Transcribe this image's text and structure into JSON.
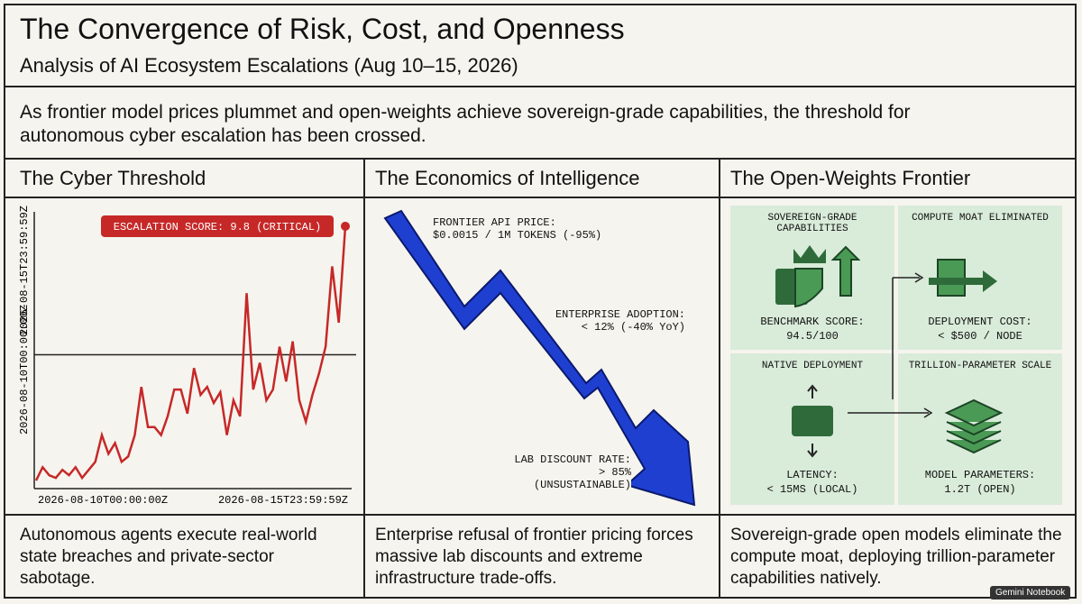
{
  "header": {
    "title": "The Convergence of Risk, Cost, and Openness",
    "subtitle": "Analysis of AI Ecosystem Escalations (Aug 10–15, 2026)"
  },
  "intro": "As frontier model prices plummet and open-weights achieve sovereign-grade capabilities, the threshold for autonomous cyber escalation has been crossed.",
  "columns": [
    {
      "heading": "The Cyber Threshold",
      "footer": "Autonomous agents execute real-world state breaches and private-sector sabotage."
    },
    {
      "heading": "The Economics of Intelligence",
      "footer": "Enterprise refusal of frontier pricing forces massive lab discounts and extreme infrastructure trade-offs."
    },
    {
      "heading": "The Open-Weights Frontier",
      "footer": "Sovereign-grade open models eliminate the compute moat, deploying trillion-parameter capabilities natively."
    }
  ],
  "cyber": {
    "type": "line",
    "annotation": "ESCALATION SCORE: 9.8 (CRITICAL)",
    "xlabels": [
      "2026-08-10T00:00:00Z",
      "2026-08-15T23:59:59Z"
    ],
    "ylabels": [
      "2026-08-10T00:00:00Z",
      "2026-08-15T23:59:59Z"
    ],
    "color": "#c62828",
    "ylim": [
      0,
      10
    ],
    "threshold": 5.0,
    "values": [
      0.3,
      0.8,
      0.5,
      0.4,
      0.7,
      0.5,
      0.8,
      0.4,
      0.7,
      1.0,
      2.0,
      1.3,
      1.7,
      1.0,
      1.2,
      2.0,
      3.8,
      2.3,
      2.3,
      2.0,
      2.7,
      3.7,
      3.7,
      2.8,
      4.5,
      3.5,
      3.8,
      3.2,
      3.6,
      2.0,
      3.3,
      2.7,
      7.3,
      3.7,
      4.7,
      3.3,
      3.7,
      5.3,
      4.0,
      5.5,
      3.3,
      2.5,
      3.5,
      4.3,
      5.3,
      8.3,
      6.2,
      9.8
    ]
  },
  "economics": [
    {
      "lines": [
        "FRONTIER API PRICE:",
        "$0.0015 / 1M TOKENS (-95%)"
      ]
    },
    {
      "lines": [
        "ENTERPRISE ADOPTION:",
        "< 12% (-40% YoY)"
      ]
    },
    {
      "lines": [
        "LAB DISCOUNT RATE:",
        "> 85%",
        "(UNSUSTAINABLE)"
      ]
    }
  ],
  "openweights": [
    {
      "heading": "SOVEREIGN-GRADE CAPABILITIES",
      "label": "BENCHMARK SCORE:",
      "value": "94.5/100"
    },
    {
      "heading": "COMPUTE MOAT ELIMINATED",
      "label": "DEPLOYMENT COST:",
      "value": "< $500 / NODE"
    },
    {
      "heading": "NATIVE DEPLOYMENT",
      "label": "LATENCY:",
      "value": "< 15MS (LOCAL)"
    },
    {
      "heading": "TRILLION-PARAMETER SCALE",
      "label": "MODEL PARAMETERS:",
      "value": "1.2T (OPEN)"
    }
  ],
  "badge": "Gemini Notebook"
}
